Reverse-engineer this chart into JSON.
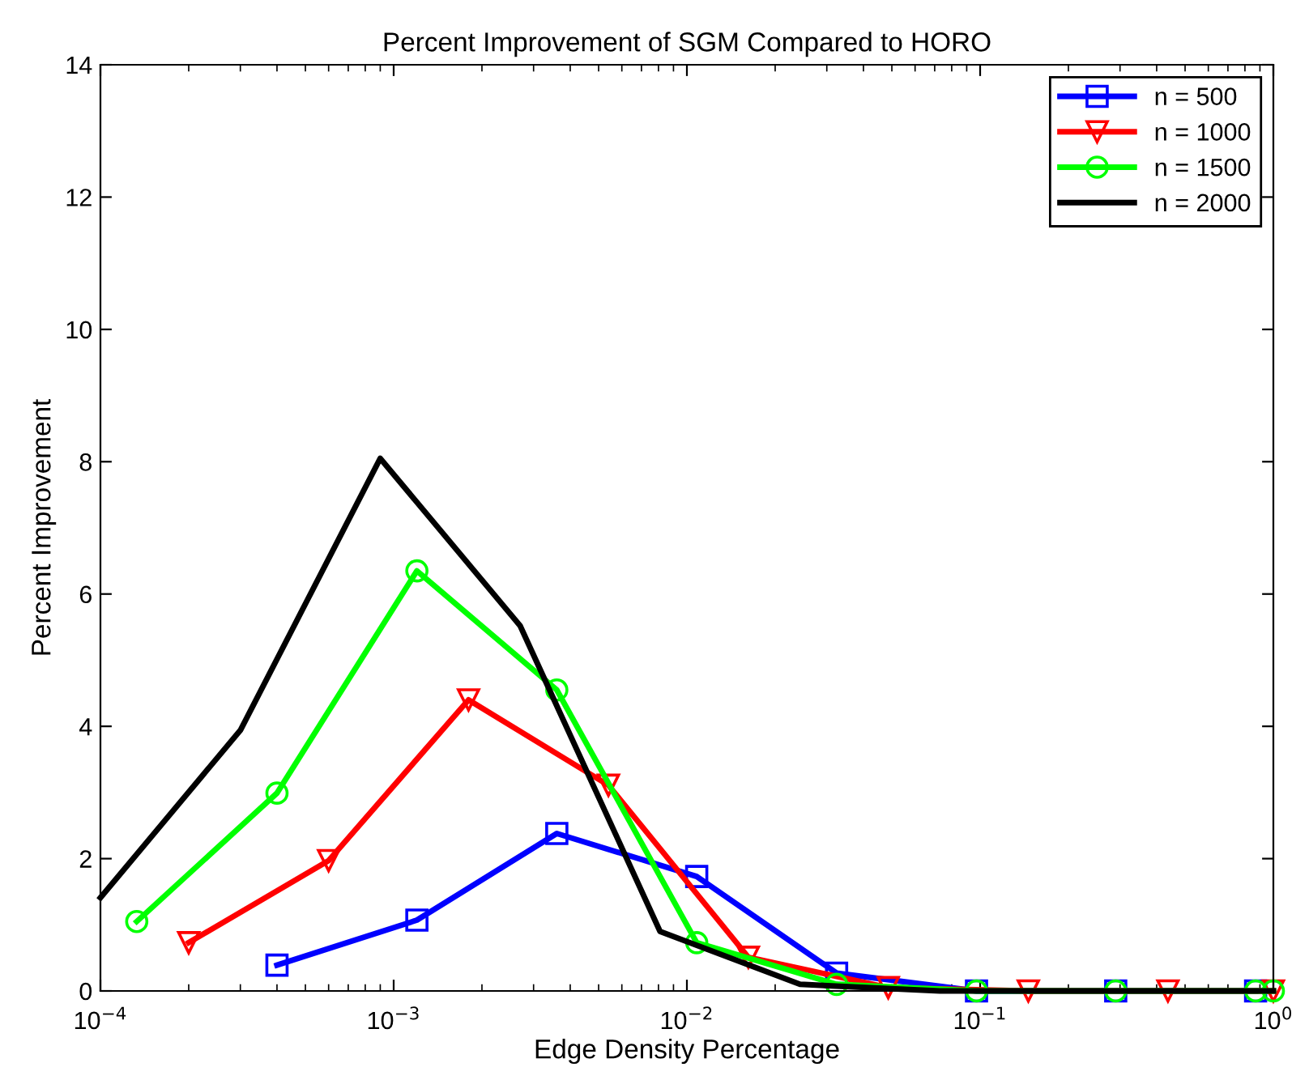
{
  "chart_data": {
    "type": "line",
    "title": "Percent Improvement of SGM Compared to HORO",
    "xlabel": "Edge Density Percentage",
    "ylabel": "Percent Improvement",
    "log": "x",
    "xlim": [
      0.0001,
      1
    ],
    "ylim": [
      0,
      14
    ],
    "xticks": [
      {
        "value": 0.0001,
        "label": "10$^{−4}$"
      },
      {
        "value": 0.001,
        "label": "10$^{−3}$"
      },
      {
        "value": 0.01,
        "label": "10$^{−2}$"
      },
      {
        "value": 0.1,
        "label": "10$^{−1}$"
      },
      {
        "value": 1,
        "label": "10$^{0}$"
      }
    ],
    "yticks": [
      0,
      2,
      4,
      6,
      8,
      10,
      12,
      14
    ],
    "grid": false,
    "legend": "top right",
    "line_style": "solid",
    "series": [
      {
        "name": "n = 500",
        "color": "#0000ff",
        "marker": "square",
        "x": [
          0.0004,
          0.0012,
          0.0036,
          0.0108,
          0.0324,
          0.0972,
          0.29,
          0.87
        ],
        "values": [
          0.39,
          1.07,
          2.38,
          1.73,
          0.27,
          0.0,
          0.0,
          0.0
        ]
      },
      {
        "name": "n = 1000",
        "color": "#ff0000",
        "marker": "triangle",
        "x": [
          0.0002,
          0.0006,
          0.0018,
          0.0054,
          0.0162,
          0.0486,
          0.146,
          0.437,
          1.0
        ],
        "values": [
          0.73,
          1.97,
          4.4,
          3.11,
          0.51,
          0.05,
          0.0,
          0.0,
          0.0
        ]
      },
      {
        "name": "n = 1500",
        "color": "#00ff00",
        "marker": "circle",
        "x": [
          0.000133,
          0.0004,
          0.0012,
          0.0036,
          0.0108,
          0.0324,
          0.0972,
          0.29,
          0.87,
          1.0
        ],
        "values": [
          1.05,
          2.99,
          6.35,
          4.55,
          0.73,
          0.1,
          0.0,
          0.0,
          0.0,
          0.0
        ]
      },
      {
        "name": "n = 2000",
        "color": "#000000",
        "marker": "none",
        "x": [
          0.0001,
          0.0003,
          0.0009,
          0.0027,
          0.0081,
          0.0243,
          0.0729,
          0.2187,
          0.6561,
          1.0
        ],
        "values": [
          1.41,
          3.94,
          8.05,
          5.52,
          0.9,
          0.1,
          0.0,
          0.0,
          0.0,
          0.0
        ]
      }
    ]
  }
}
